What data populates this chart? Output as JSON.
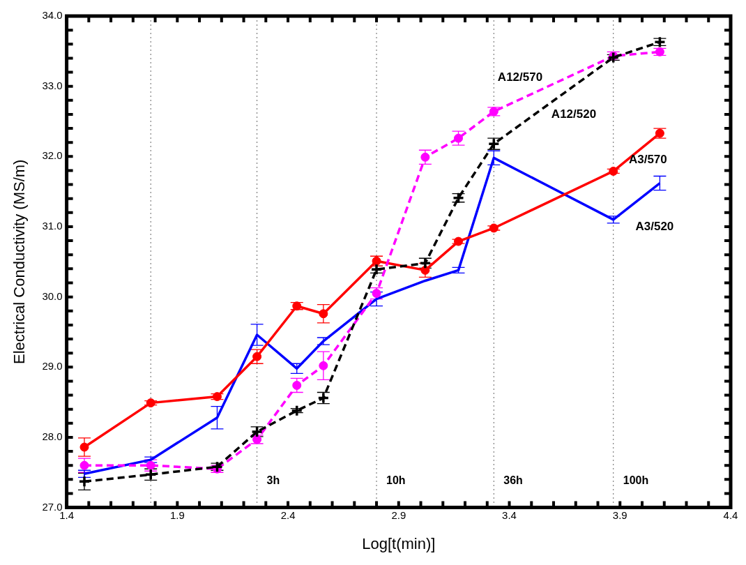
{
  "chart_data": {
    "type": "line",
    "xlabel": "Log[t(min)]",
    "ylabel": "Electrical Conductivity (MS/m)",
    "xlim": [
      1.4,
      4.4
    ],
    "xticks": [
      {
        "value": 1.4,
        "label": "1.4"
      },
      {
        "value": 1.9,
        "label": "1.9"
      },
      {
        "value": 2.4,
        "label": "2.4"
      },
      {
        "value": 2.9,
        "label": "2.9"
      },
      {
        "value": 3.4,
        "label": "3.4"
      },
      {
        "value": 3.9,
        "label": "3.9"
      },
      {
        "value": 4.4,
        "label": "4.4"
      }
    ],
    "ylim": [
      27,
      34
    ],
    "yticks": [
      {
        "value": 27,
        "label": "27.0"
      },
      {
        "value": 28,
        "label": "28.0"
      },
      {
        "value": 29,
        "label": "29.0"
      },
      {
        "value": 30,
        "label": "30.0"
      },
      {
        "value": 31,
        "label": "31.0"
      },
      {
        "value": 32,
        "label": "32.0"
      },
      {
        "value": 33,
        "label": "33.0"
      },
      {
        "value": 34,
        "label": "34.0"
      }
    ],
    "grid": false,
    "legend": false,
    "x": [
      1.48,
      1.78,
      2.08,
      2.26,
      2.44,
      2.56,
      2.8,
      3.02,
      3.17,
      3.33,
      3.87,
      4.08
    ],
    "series": [
      {
        "name": "A12/570",
        "color": "#ff00ff",
        "marker": "circle",
        "line_style": "dashed",
        "values": [
          27.6,
          27.6,
          27.55,
          27.97,
          28.74,
          29.02,
          30.05,
          31.99,
          32.26,
          32.64,
          33.43,
          33.49
        ],
        "errors": [
          0.1,
          0.08,
          0.05,
          0.06,
          0.1,
          0.2,
          0.08,
          0.1,
          0.1,
          0.06,
          0.06,
          0.05
        ]
      },
      {
        "name": "A12/520",
        "color": "#000000",
        "marker": "cross",
        "line_style": "dashed",
        "values": [
          27.37,
          27.47,
          27.58,
          28.08,
          28.38,
          28.56,
          30.39,
          30.48,
          31.41,
          32.18,
          33.41,
          33.63
        ],
        "errors": [
          0.12,
          0.08,
          0.05,
          0.07,
          0.03,
          0.08,
          0.05,
          0.07,
          0.06,
          0.08,
          0.04,
          0.05
        ]
      },
      {
        "name": "A3/570",
        "color": "#ff0000",
        "marker": "circle",
        "line_style": "solid",
        "values": [
          27.86,
          28.49,
          28.58,
          29.15,
          29.87,
          29.76,
          30.51,
          30.38,
          30.79,
          30.98,
          31.79,
          32.33
        ],
        "errors": [
          0.13,
          0.03,
          0.04,
          0.1,
          0.05,
          0.13,
          0.07,
          0.1,
          0.03,
          0.03,
          0.03,
          0.07
        ]
      },
      {
        "name": "A3/520",
        "color": "#0000ff",
        "marker": "none",
        "line_style": "solid",
        "values": [
          27.48,
          27.68,
          28.28,
          29.46,
          28.98,
          29.37,
          29.97,
          30.23,
          30.38,
          31.98,
          31.1,
          31.62
        ],
        "errors": [
          0.05,
          0.04,
          0.16,
          0.15,
          0.07,
          0.05,
          0.1,
          null,
          0.04,
          0.1,
          0.05,
          0.1
        ]
      }
    ],
    "ref_lines": [
      {
        "axis": "x",
        "value": 1.78,
        "label": null,
        "color": "#666666",
        "line_style": "dotted"
      },
      {
        "axis": "x",
        "value": 2.26,
        "label": "3h",
        "color": "#666666",
        "line_style": "dotted"
      },
      {
        "axis": "x",
        "value": 2.8,
        "label": "10h",
        "color": "#666666",
        "line_style": "dotted"
      },
      {
        "axis": "x",
        "value": 3.33,
        "label": "36h",
        "color": "#666666",
        "line_style": "dotted"
      },
      {
        "axis": "x",
        "value": 3.87,
        "label": "100h",
        "color": "#666666",
        "line_style": "dotted"
      }
    ]
  }
}
